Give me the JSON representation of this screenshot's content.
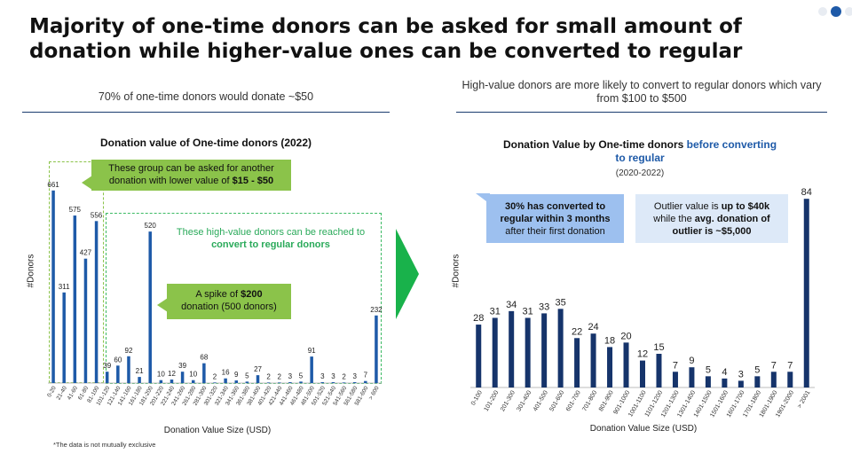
{
  "header": {
    "title": "Majority of one-time donors can be asked for small amount of donation while higher-value ones can be converted to regular"
  },
  "left_panel": {
    "subtitle": "70% of one-time donors would donate ~$50",
    "chart_title": "Donation value of One-time donors (2022)",
    "callout_low": {
      "text": "These group can be asked for another donation with lower value of ",
      "bold": "$15 - $50"
    },
    "callout_high": {
      "text": "These high-value donors can be reached to ",
      "bold": "convert to regular donors"
    },
    "callout_spike": {
      "text1": "A spike of ",
      "bold": "$200",
      "text2": "donation (500 donors)"
    },
    "footnote": "*The data is not mutually exclusive"
  },
  "right_panel": {
    "subtitle": "High-value donors are more likely to convert to regular donors which vary from $100 to $500",
    "chart_title_1": "Donation Value by One-time donors ",
    "chart_title_2": "before converting to regular",
    "chart_subtitle": "(2020-2022)",
    "callout_converted": {
      "bold": "30% has converted to regular within 3 months",
      "text": "after their first donation"
    },
    "callout_outlier": {
      "t1": "Outlier value is ",
      "b1": "up to $40k",
      "t2": "while the ",
      "b2": "avg. donation of outlier is ~$5,000"
    }
  },
  "colors": {
    "bar": "#1e5aa8",
    "bar_dark": "#16346b",
    "green": "#8bc34a",
    "green_arrow": "#19b24b"
  },
  "chart_data": [
    {
      "type": "bar",
      "title": "Donation value of One-time donors (2022)",
      "xlabel": "Donation Value Size (USD)",
      "ylabel": "#Donors",
      "categories": [
        "0-20",
        "21-40",
        "41-60",
        "61-80",
        "81-100",
        "101-120",
        "121-140",
        "141-160",
        "161-180",
        "181-200",
        "201-220",
        "221-240",
        "241-260",
        "261-280",
        "281-300",
        "301-320",
        "321-340",
        "341-360",
        "361-380",
        "381-400",
        "401-420",
        "421-440",
        "441-460",
        "461-480",
        "481-500",
        "501-520",
        "521-540",
        "541-560",
        "561-580",
        "581-600",
        "> 600"
      ],
      "values": [
        661,
        311,
        575,
        427,
        556,
        39,
        60,
        92,
        21,
        520,
        10,
        12,
        39,
        10,
        68,
        2,
        16,
        9,
        5,
        27,
        2,
        2,
        3,
        5,
        91,
        3,
        3,
        2,
        3,
        7,
        232
      ],
      "ylim": [
        0,
        700
      ]
    },
    {
      "type": "bar",
      "title": "Donation Value by One-time donors before converting to regular",
      "subtitle": "(2020-2022)",
      "xlabel": "Donation Value Size (USD)",
      "ylabel": "#Donors",
      "categories": [
        "0-100",
        "101-200",
        "201-300",
        "301-400",
        "401-500",
        "501-600",
        "601-700",
        "701-800",
        "801-900",
        "901-1000",
        "1001-1100",
        "1101-1200",
        "1201-1300",
        "1301-1400",
        "1401-1500",
        "1501-1600",
        "1601-1700",
        "1701-1800",
        "1801-1900",
        "1901-2000",
        "> 2001"
      ],
      "values": [
        28,
        31,
        34,
        31,
        33,
        35,
        22,
        24,
        18,
        20,
        12,
        15,
        7,
        9,
        5,
        4,
        3,
        5,
        7,
        7,
        84
      ],
      "ylim": [
        0,
        90
      ]
    }
  ]
}
